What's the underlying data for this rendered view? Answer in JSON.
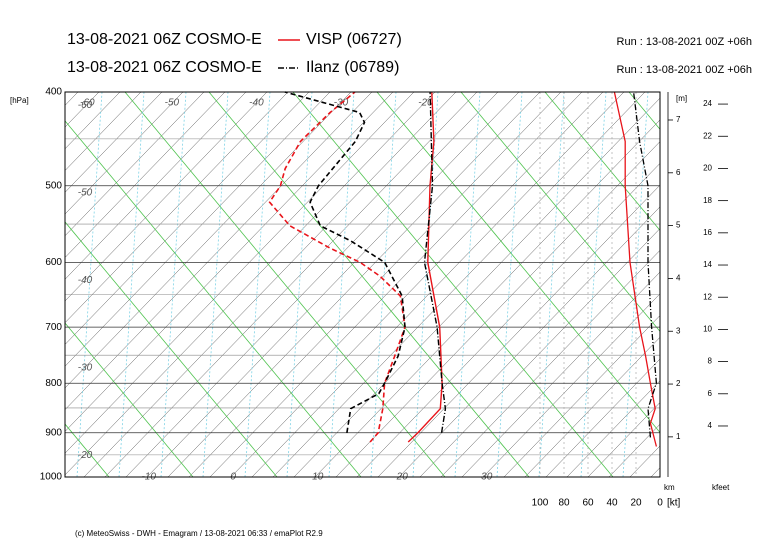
{
  "chart_data": {
    "type": "emagram",
    "ylabel": "[hPa]",
    "ylim": [
      1000,
      400
    ],
    "log_y": true,
    "yticks": [
      400,
      500,
      600,
      700,
      800,
      900,
      1000
    ],
    "xlim": [
      -19.9,
      50.5
    ],
    "isotherm_labels_top": [
      -60,
      -50,
      -40,
      -30,
      -20
    ],
    "isotherm_labels_left": [
      -60,
      -50,
      -40,
      -30,
      -20
    ],
    "isotherm_labels_bottom": [
      -10,
      0,
      10,
      20,
      30
    ],
    "stations": [
      {
        "model": "13-08-2021 06Z COSMO-E",
        "name": "VISP (06727)",
        "run": "Run : 13-08-2021 00Z +06h",
        "color": "#e8141a",
        "line_style": "solid",
        "temperature": {
          "p": [
            920,
            900,
            850,
            800,
            700,
            600,
            500,
            450,
            400
          ],
          "t": [
            16.7,
            16.8,
            16.7,
            14.0,
            7.3,
            -1.5,
            -10.0,
            -14.6,
            -20.5
          ]
        },
        "dewpoint": {
          "p": [
            920,
            900,
            850,
            800,
            750,
            700,
            650,
            620,
            600,
            580,
            550,
            520,
            500,
            480,
            450,
            420,
            400
          ],
          "t": [
            12.2,
            12.1,
            9.9,
            7.2,
            5.3,
            3.2,
            -0.9,
            -5.6,
            -9.5,
            -14.7,
            -22.0,
            -27.1,
            -27.7,
            -29.1,
            -30.4,
            -30.2,
            -29.6
          ]
        },
        "wind_speed": {
          "p": [
            930,
            880,
            850,
            800,
            750,
            700,
            600,
            500,
            450,
            400
          ],
          "v": [
            3,
            8,
            4,
            8,
            12,
            17,
            25,
            29,
            29,
            38
          ]
        }
      },
      {
        "model": "13-08-2021 06Z COSMO-E",
        "name": "Ilanz (06789)",
        "run": "Run : 13-08-2021 00Z +06h",
        "color": "#000000",
        "line_style": "dashdot",
        "temperature": {
          "p": [
            900,
            850,
            800,
            700,
            600,
            500,
            400
          ],
          "t": [
            19.6,
            17.3,
            14.0,
            7.0,
            -1.9,
            -9.7,
            -20.7
          ]
        },
        "dewpoint": {
          "p": [
            900,
            850,
            820,
            800,
            750,
            700,
            650,
            600,
            570,
            550,
            520,
            500,
            450,
            430,
            420,
            400
          ],
          "t": [
            8.4,
            6.1,
            7.7,
            7.2,
            5.7,
            3.2,
            -0.7,
            -6.6,
            -13.1,
            -18.4,
            -22.3,
            -23.2,
            -23.9,
            -25.0,
            -26.7,
            -37.9
          ]
        },
        "wind_speed": {
          "p": [
            910,
            850,
            800,
            700,
            600,
            500,
            450,
            400
          ],
          "v": [
            8,
            10,
            3,
            7,
            10,
            10,
            17,
            22
          ]
        }
      }
    ],
    "wind_axis": {
      "label": "[kt]",
      "lim": [
        100,
        0
      ],
      "ticks": [
        100,
        80,
        60,
        40,
        20,
        0
      ]
    },
    "height_axis": {
      "label": "[m]",
      "unit": "km",
      "lim": [
        0.24,
        7.53
      ],
      "ticks": [
        1,
        2,
        3,
        4,
        5,
        6,
        7
      ]
    },
    "kfeet_axis": {
      "label": "kfeet",
      "lim": [
        0.83,
        24.75
      ],
      "ticks": [
        4,
        6,
        8,
        10,
        12,
        14,
        16,
        18,
        20,
        22,
        24
      ]
    },
    "footer": "(c) MeteoSwiss - DWH - Emagram / 13-08-2021 06:33 / emaPlot R2.9"
  }
}
